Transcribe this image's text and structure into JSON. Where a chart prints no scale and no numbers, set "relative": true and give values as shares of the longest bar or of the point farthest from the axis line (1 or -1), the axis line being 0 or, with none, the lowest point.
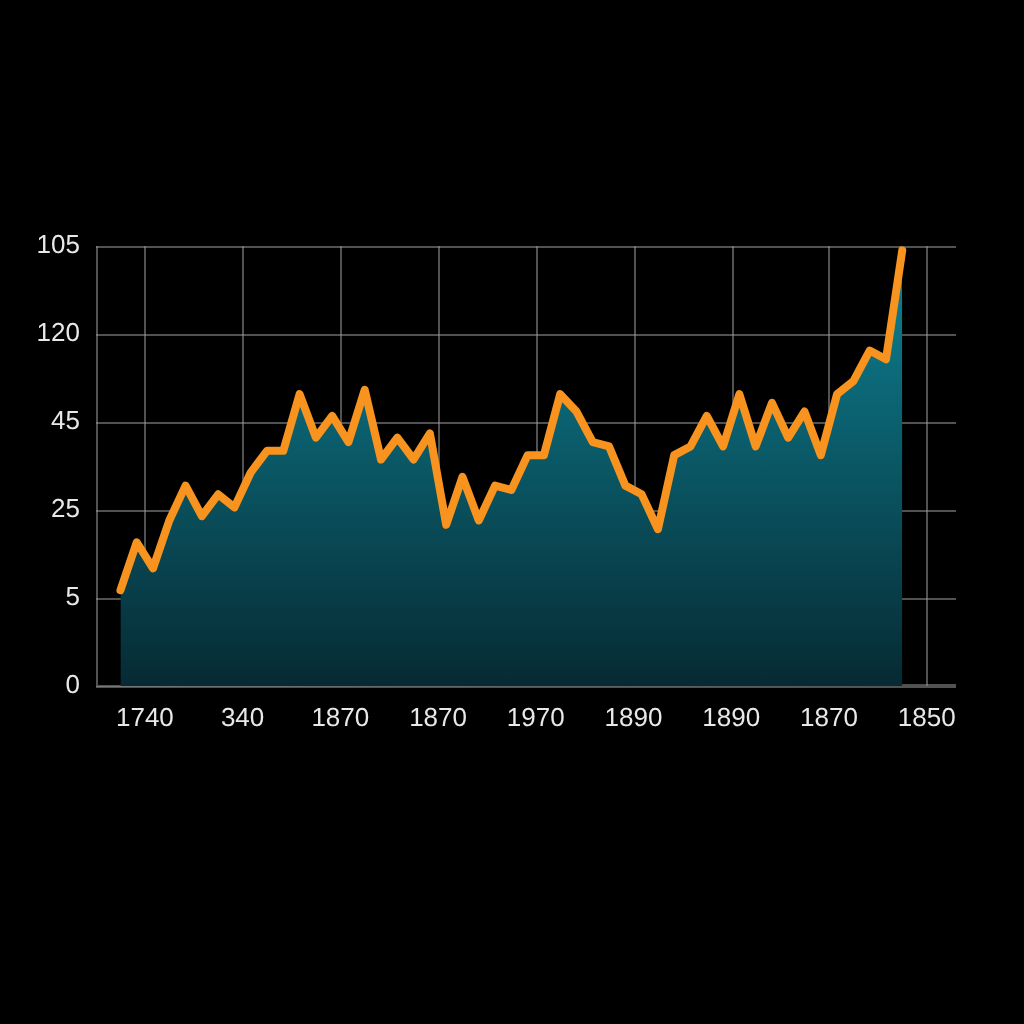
{
  "chart_data": {
    "type": "area",
    "relative": true,
    "categories": [
      null,
      null,
      null,
      null,
      null,
      null,
      null,
      null,
      null,
      null,
      null,
      null,
      null,
      null,
      null,
      null,
      null,
      null,
      null,
      null,
      null,
      null,
      null,
      null,
      null,
      null,
      null,
      null,
      null,
      null,
      null,
      null,
      null,
      null,
      null,
      null,
      null,
      null,
      null,
      null,
      null,
      null,
      null,
      null,
      null,
      null,
      null,
      null,
      null
    ],
    "series": [
      {
        "color": "#f7931e",
        "values": [
          0.22,
          0.33,
          0.27,
          0.38,
          0.46,
          0.39,
          0.44,
          0.41,
          0.49,
          0.54,
          0.54,
          0.67,
          0.57,
          0.62,
          0.56,
          0.68,
          0.52,
          0.57,
          0.52,
          0.58,
          0.37,
          0.48,
          0.38,
          0.46,
          0.45,
          0.53,
          0.53,
          0.67,
          0.63,
          0.56,
          0.55,
          0.46,
          0.44,
          0.36,
          0.53,
          0.55,
          0.62,
          0.55,
          0.67,
          0.55,
          0.65,
          0.57,
          0.63,
          0.53,
          0.67,
          0.7,
          0.77,
          0.75,
          1
        ]
      }
    ],
    "annotations": [
      "0",
      "5",
      "25",
      "45",
      "120",
      "105",
      "1740",
      "340",
      "1870",
      "1870",
      "1970",
      "1890",
      "1890",
      "1870",
      "1850"
    ],
    "grid": true,
    "legend": false,
    "marker": "none",
    "line_style": "solid"
  }
}
